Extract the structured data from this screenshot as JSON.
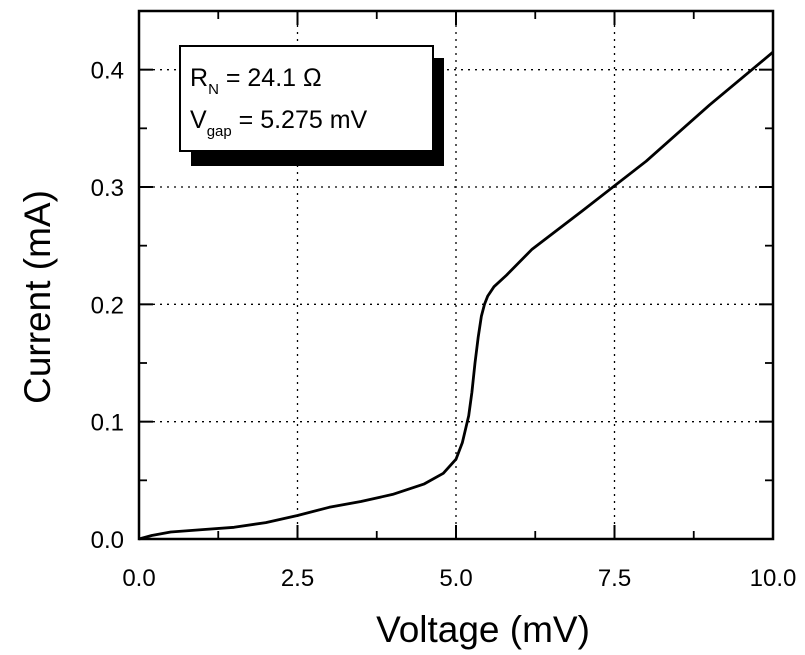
{
  "chart_data": {
    "type": "line",
    "xlabel": "Voltage (mV)",
    "ylabel": "Current (mA)",
    "xlim": [
      0,
      10
    ],
    "ylim": [
      0,
      0.45
    ],
    "xticks": [
      "0.0",
      "2.5",
      "5.0",
      "7.5",
      "10.0"
    ],
    "yticks": [
      "0.0",
      "0.1",
      "0.2",
      "0.3",
      "0.4"
    ],
    "grid": "dotted",
    "annotation": {
      "line1": {
        "main": "R",
        "sub": "N",
        "rest": " = 24.1 Ω"
      },
      "line2": {
        "main": "V",
        "sub": "gap",
        "rest": " = 5.275 mV"
      }
    },
    "series": [
      {
        "x": [
          0.0,
          0.2,
          0.5,
          1.0,
          1.5,
          2.0,
          2.5,
          3.0,
          3.5,
          4.0,
          4.5,
          4.8,
          5.0,
          5.1,
          5.2,
          5.25,
          5.3,
          5.35,
          5.4,
          5.45,
          5.5,
          5.6,
          5.8,
          6.2,
          7.0,
          7.5,
          8.0,
          9.0,
          10.0
        ],
        "y": [
          0.0,
          0.003,
          0.006,
          0.008,
          0.01,
          0.014,
          0.02,
          0.027,
          0.032,
          0.038,
          0.047,
          0.056,
          0.068,
          0.082,
          0.105,
          0.125,
          0.15,
          0.172,
          0.19,
          0.2,
          0.207,
          0.215,
          0.225,
          0.247,
          0.28,
          0.301,
          0.322,
          0.37,
          0.415
        ]
      }
    ]
  }
}
